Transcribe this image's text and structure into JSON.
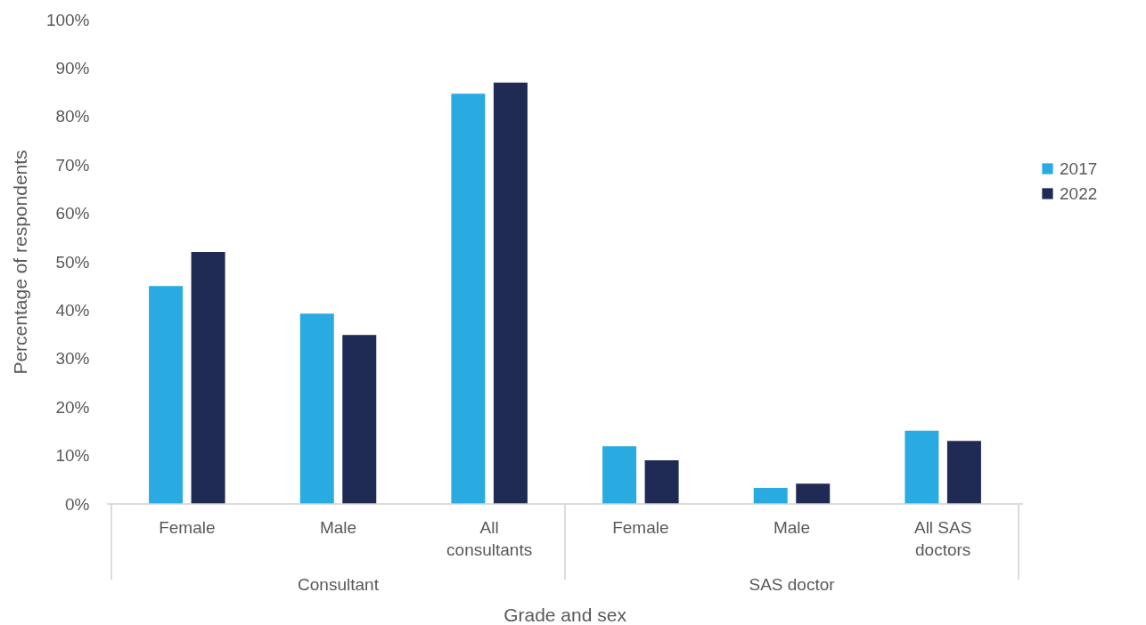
{
  "chart_data": {
    "type": "bar",
    "xlabel": "Grade and sex",
    "ylabel": "Percentage of respondents",
    "categories": [
      "Female",
      "Male",
      "All consultants",
      "Female",
      "Male",
      "All SAS doctors"
    ],
    "annotations": [
      "Consultant",
      "SAS doctor"
    ],
    "series": [
      {
        "name": "2017",
        "color": "#29abe2",
        "values": [
          45.0,
          39.3,
          84.7,
          11.9,
          3.3,
          15.1
        ]
      },
      {
        "name": "2022",
        "color": "#1f2a55",
        "values": [
          52.0,
          34.9,
          87.0,
          9.0,
          4.2,
          13.0
        ]
      }
    ],
    "ylim": [
      0,
      100
    ],
    "yticks": [
      {
        "value": 0,
        "label": "0%"
      },
      {
        "value": 10,
        "label": "10%"
      },
      {
        "value": 20,
        "label": "20%"
      },
      {
        "value": 30,
        "label": "30%"
      },
      {
        "value": 40,
        "label": "40%"
      },
      {
        "value": 50,
        "label": "50%"
      },
      {
        "value": 60,
        "label": "60%"
      },
      {
        "value": 70,
        "label": "70%"
      },
      {
        "value": 80,
        "label": "80%"
      },
      {
        "value": 90,
        "label": "90%"
      },
      {
        "value": 100,
        "label": "100%"
      }
    ],
    "grid": false,
    "legend": "right"
  }
}
